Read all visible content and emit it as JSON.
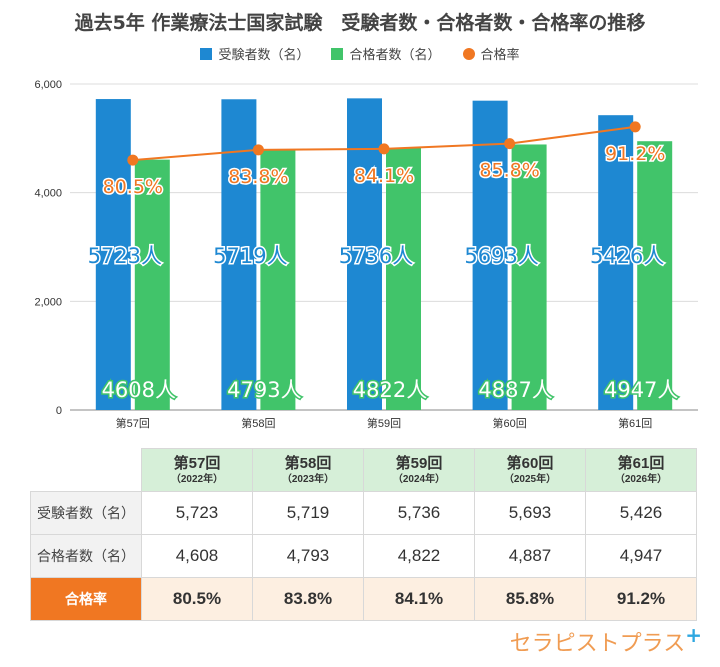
{
  "title": "過去5年 作業療法士国家試験　受験者数・合格者数・合格率の推移",
  "legend": {
    "examinees": "受験者数（名）",
    "passers": "合格者数（名）",
    "rate": "合格率"
  },
  "colors": {
    "examinees": "#1e88d2",
    "passers": "#41c46a",
    "rate": "#f07722",
    "rate_label_text": "#f07722"
  },
  "chart_data": {
    "type": "bar",
    "categories": [
      "第57回",
      "第58回",
      "第59回",
      "第60回",
      "第61回"
    ],
    "series": [
      {
        "name": "受験者数（名）",
        "values": [
          5723,
          5719,
          5736,
          5693,
          5426
        ],
        "labels": [
          "5723人",
          "5719人",
          "5736人",
          "5693人",
          "5426人"
        ]
      },
      {
        "name": "合格者数（名）",
        "values": [
          4608,
          4793,
          4822,
          4887,
          4947
        ],
        "labels": [
          "4608人",
          "4793人",
          "4822人",
          "4887人",
          "4947人"
        ]
      },
      {
        "name": "合格率",
        "type": "line",
        "values": [
          80.5,
          83.8,
          84.1,
          85.8,
          91.2
        ],
        "labels": [
          "80.5%",
          "83.8%",
          "84.1%",
          "85.8%",
          "91.2%"
        ]
      }
    ],
    "yticks": [
      "0",
      "2,000",
      "4,000",
      "6,000"
    ],
    "ylim": [
      0,
      6000
    ],
    "grid": true,
    "legend_position": "top"
  },
  "table": {
    "columns": [
      {
        "main": "第57回",
        "sub": "（2022年）"
      },
      {
        "main": "第58回",
        "sub": "（2023年）"
      },
      {
        "main": "第59回",
        "sub": "（2024年）"
      },
      {
        "main": "第60回",
        "sub": "（2025年）"
      },
      {
        "main": "第61回",
        "sub": "（2026年）"
      }
    ],
    "rows": [
      {
        "label": "受験者数（名）",
        "cells": [
          "5,723",
          "5,719",
          "5,736",
          "5,693",
          "5,426"
        ]
      },
      {
        "label": "合格者数（名）",
        "cells": [
          "4,608",
          "4,793",
          "4,822",
          "4,887",
          "4,947"
        ]
      },
      {
        "label": "合格率",
        "cells": [
          "80.5%",
          "83.8%",
          "84.1%",
          "85.8%",
          "91.2%"
        ]
      }
    ]
  },
  "logo": {
    "text": "セラピストプラス",
    "mark": "+"
  }
}
